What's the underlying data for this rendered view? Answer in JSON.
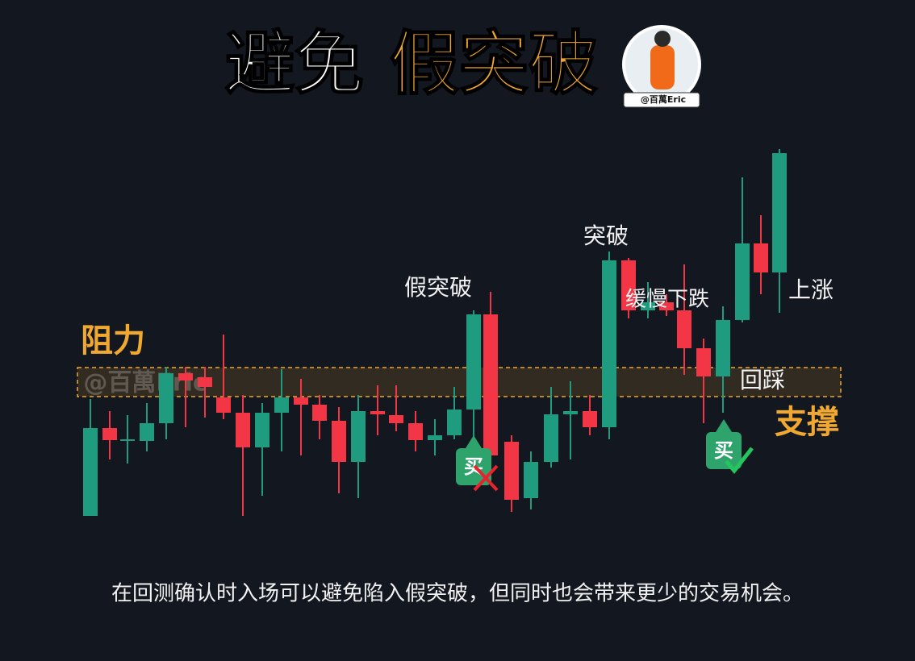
{
  "header": {
    "title_white": "避免",
    "title_orange": "假突破",
    "handle": "@百萬Eric"
  },
  "chart": {
    "watermark": "@百萬Eric",
    "resistance": "阻力",
    "support": "支撑",
    "labels": {
      "fake_breakout": "假突破",
      "breakout": "突破",
      "slow_decline": "缓慢下跌",
      "rise": "上涨",
      "retest": "回踩"
    },
    "buy_signals": [
      "买",
      "买"
    ]
  },
  "caption": "在回测确认时入场可以避免陷入假突破，但同时也会带来更少的交易机会。"
}
